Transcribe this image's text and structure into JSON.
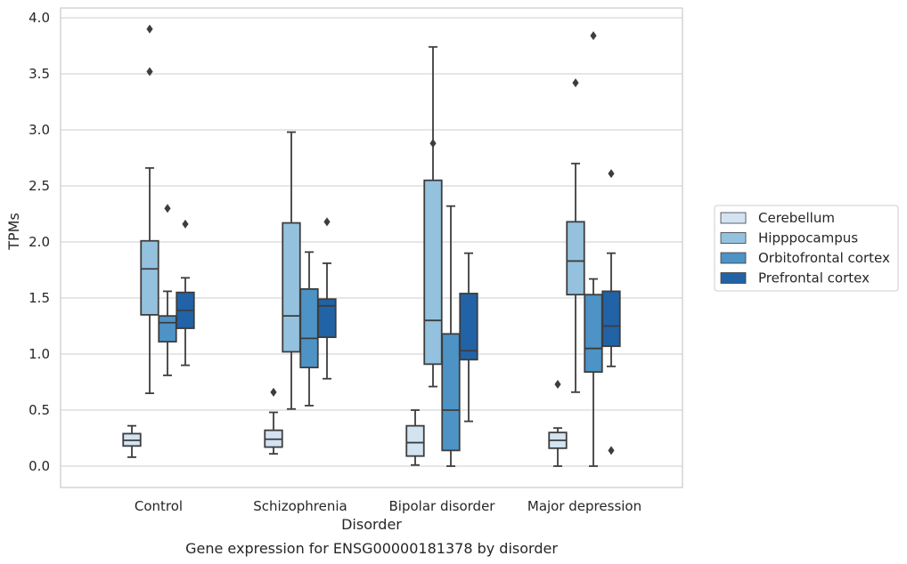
{
  "chart_data": {
    "type": "box",
    "title": "Gene expression for ENSG00000181378 by disorder",
    "xlabel": "Disorder",
    "ylabel": "TPMs",
    "ylim": [
      -0.18,
      4.1
    ],
    "yticks": [
      "0.0",
      "0.5",
      "1.0",
      "1.5",
      "2.0",
      "2.5",
      "3.0",
      "3.5",
      "4.0"
    ],
    "grid": "horizontal",
    "legend_position": "right",
    "categories": [
      "Control",
      "Schizophrenia",
      "Bipolar disorder",
      "Major depression"
    ],
    "series": [
      {
        "name": "Cerebellum",
        "color": "#d3e3f2",
        "boxes": [
          {
            "wlo": 0.08,
            "q1": 0.18,
            "med": 0.23,
            "q3": 0.29,
            "whi": 0.36,
            "outliers": []
          },
          {
            "wlo": 0.11,
            "q1": 0.17,
            "med": 0.24,
            "q3": 0.32,
            "whi": 0.48,
            "outliers": [
              0.66
            ]
          },
          {
            "wlo": 0.01,
            "q1": 0.09,
            "med": 0.21,
            "q3": 0.36,
            "whi": 0.5,
            "outliers": []
          },
          {
            "wlo": 0.0,
            "q1": 0.16,
            "med": 0.23,
            "q3": 0.3,
            "whi": 0.34,
            "outliers": [
              0.73
            ]
          }
        ]
      },
      {
        "name": "Hipppocampus",
        "color": "#94c2de",
        "boxes": [
          {
            "wlo": 0.65,
            "q1": 1.35,
            "med": 1.76,
            "q3": 2.01,
            "whi": 2.66,
            "outliers": [
              3.52,
              3.9
            ]
          },
          {
            "wlo": 0.51,
            "q1": 1.02,
            "med": 1.34,
            "q3": 2.17,
            "whi": 2.98,
            "outliers": []
          },
          {
            "wlo": 0.71,
            "q1": 0.91,
            "med": 1.3,
            "q3": 2.55,
            "whi": 3.74,
            "outliers": [
              2.88
            ]
          },
          {
            "wlo": 0.66,
            "q1": 1.53,
            "med": 1.83,
            "q3": 2.18,
            "whi": 2.7,
            "outliers": [
              3.42
            ]
          }
        ]
      },
      {
        "name": "Orbitofrontal cortex",
        "color": "#4d93c6",
        "boxes": [
          {
            "wlo": 0.81,
            "q1": 1.11,
            "med": 1.28,
            "q3": 1.34,
            "whi": 1.56,
            "outliers": [
              2.3
            ]
          },
          {
            "wlo": 0.54,
            "q1": 0.88,
            "med": 1.14,
            "q3": 1.58,
            "whi": 1.91,
            "outliers": []
          },
          {
            "wlo": 0.0,
            "q1": 0.14,
            "med": 0.5,
            "q3": 1.18,
            "whi": 2.32,
            "outliers": []
          },
          {
            "wlo": 0.0,
            "q1": 0.84,
            "med": 1.05,
            "q3": 1.53,
            "whi": 1.67,
            "outliers": [
              3.84
            ]
          }
        ]
      },
      {
        "name": "Prefrontal cortex",
        "color": "#2163a6",
        "boxes": [
          {
            "wlo": 0.9,
            "q1": 1.23,
            "med": 1.39,
            "q3": 1.55,
            "whi": 1.68,
            "outliers": [
              2.16
            ]
          },
          {
            "wlo": 0.78,
            "q1": 1.15,
            "med": 1.43,
            "q3": 1.49,
            "whi": 1.81,
            "outliers": [
              2.18
            ]
          },
          {
            "wlo": 0.4,
            "q1": 0.95,
            "med": 1.03,
            "q3": 1.54,
            "whi": 1.9,
            "outliers": []
          },
          {
            "wlo": 0.89,
            "q1": 1.07,
            "med": 1.25,
            "q3": 1.56,
            "whi": 1.9,
            "outliers": [
              0.14,
              2.61
            ]
          }
        ]
      }
    ]
  }
}
